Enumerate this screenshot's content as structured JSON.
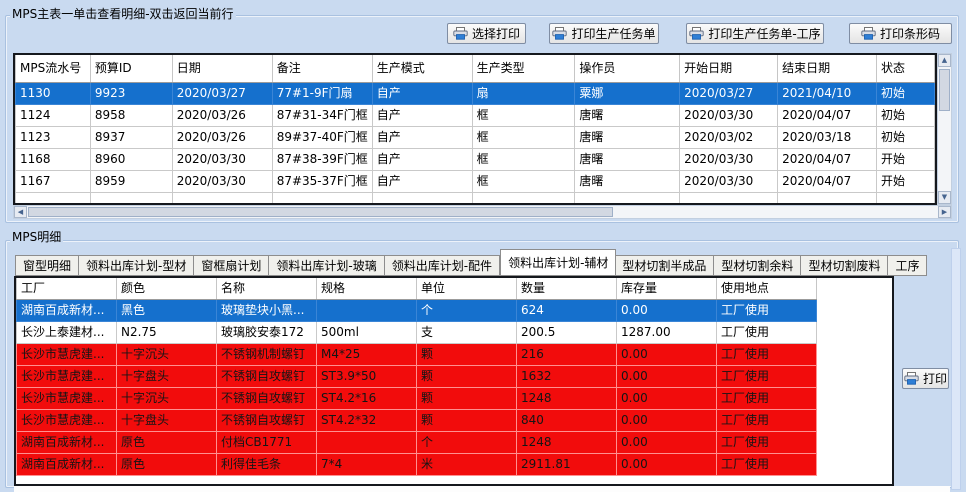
{
  "window": {
    "background": "#c9daf0"
  },
  "colors": {
    "selected_row": "#1570cd",
    "alert_row": "#f20c0c",
    "window_bg": "#c9daf0"
  },
  "master_panel": {
    "title": "MPS主表一单击查看明细-双击返回当前行",
    "toolbar": [
      {
        "name": "select-print",
        "icon": "printer-icon",
        "label": "选择打印"
      },
      {
        "name": "print-production-task",
        "icon": "printer-icon",
        "label": "打印生产任务单"
      },
      {
        "name": "print-production-task-process",
        "icon": "printer-icon",
        "label": "打印生产任务单-工序"
      },
      {
        "name": "print-barcode",
        "icon": "printer-icon",
        "label": "打印条形码"
      }
    ],
    "grid": {
      "columns": [
        "MPS流水号",
        "预算ID",
        "日期",
        "备注",
        "生产模式",
        "生产类型",
        "操作员",
        "开始日期",
        "结束日期",
        "状态"
      ],
      "rows": [
        {
          "selected": true,
          "cells": [
            "1130",
            "9923",
            "2020/03/27",
            "77#1-9F门扇",
            "自产",
            "扇",
            "粟娜",
            "2020/03/27",
            "2021/04/10",
            "初始"
          ]
        },
        {
          "selected": false,
          "cells": [
            "1124",
            "8958",
            "2020/03/26",
            "87#31-34F门框",
            "自产",
            "框",
            "唐曙",
            "2020/03/30",
            "2020/04/07",
            "初始"
          ]
        },
        {
          "selected": false,
          "cells": [
            "1123",
            "8937",
            "2020/03/26",
            "89#37-40F门框",
            "自产",
            "框",
            "唐曙",
            "2020/03/02",
            "2020/03/18",
            "初始"
          ]
        },
        {
          "selected": false,
          "cells": [
            "1168",
            "8960",
            "2020/03/30",
            "87#38-39F门框",
            "自产",
            "框",
            "唐曙",
            "2020/03/30",
            "2020/04/07",
            "开始"
          ]
        },
        {
          "selected": false,
          "cells": [
            "1167",
            "8959",
            "2020/03/30",
            "87#35-37F门框",
            "自产",
            "框",
            "唐曙",
            "2020/03/30",
            "2020/04/07",
            "开始"
          ]
        }
      ]
    }
  },
  "detail_panel": {
    "title": "MPS明细",
    "tabs": [
      {
        "label": "窗型明细",
        "active": false
      },
      {
        "label": "领料出库计划-型材",
        "active": false
      },
      {
        "label": "窗框扇计划",
        "active": false
      },
      {
        "label": "领料出库计划-玻璃",
        "active": false
      },
      {
        "label": "领料出库计划-配件",
        "active": false
      },
      {
        "label": "领料出库计划-辅材",
        "active": true
      },
      {
        "label": "型材切割半成品",
        "active": false
      },
      {
        "label": "型材切割余料",
        "active": false
      },
      {
        "label": "型材切割废料",
        "active": false
      },
      {
        "label": "工序",
        "active": false
      }
    ],
    "print_button": {
      "name": "print",
      "icon": "printer-icon",
      "label": "打印"
    },
    "grid": {
      "columns": [
        "工厂",
        "颜色",
        "名称",
        "规格",
        "单位",
        "数量",
        "库存量",
        "使用地点"
      ],
      "rows": [
        {
          "state": "selected",
          "cells": [
            "湖南百成新材...",
            "黑色",
            "玻璃垫块小黑...",
            "",
            "个",
            "624",
            "0.00",
            "工厂使用"
          ]
        },
        {
          "state": "normal",
          "cells": [
            "长沙上泰建材...",
            "N2.75",
            "玻璃胶安泰172",
            "500ml",
            "支",
            "200.5",
            "1287.00",
            "工厂使用"
          ]
        },
        {
          "state": "alert",
          "cells": [
            "长沙市慧虎建...",
            "十字沉头",
            "不锈钢机制螺钉",
            "M4*25",
            "颗",
            "216",
            "0.00",
            "工厂使用"
          ]
        },
        {
          "state": "alert",
          "cells": [
            "长沙市慧虎建...",
            "十字盘头",
            "不锈钢自攻螺钉",
            "ST3.9*50",
            "颗",
            "1632",
            "0.00",
            "工厂使用"
          ]
        },
        {
          "state": "alert",
          "cells": [
            "长沙市慧虎建...",
            "十字沉头",
            "不锈钢自攻螺钉",
            "ST4.2*16",
            "颗",
            "1248",
            "0.00",
            "工厂使用"
          ]
        },
        {
          "state": "alert",
          "cells": [
            "长沙市慧虎建...",
            "十字盘头",
            "不锈钢自攻螺钉",
            "ST4.2*32",
            "颗",
            "840",
            "0.00",
            "工厂使用"
          ]
        },
        {
          "state": "alert",
          "cells": [
            "湖南百成新材...",
            "原色",
            "付档CB1771",
            "",
            "个",
            "1248",
            "0.00",
            "工厂使用"
          ]
        },
        {
          "state": "alert",
          "cells": [
            "湖南百成新材...",
            "原色",
            "利得佳毛条",
            "7*4",
            "米",
            "2911.81",
            "0.00",
            "工厂使用"
          ]
        }
      ]
    }
  }
}
